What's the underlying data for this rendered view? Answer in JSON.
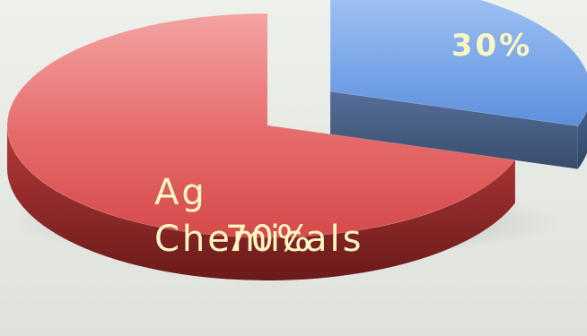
{
  "chart_data": {
    "type": "pie",
    "style": "3d-exploded",
    "slices": [
      {
        "label": "",
        "value": 30,
        "value_label": "30%",
        "color": "#6f9ee3"
      },
      {
        "label": "Ag\nChemicals",
        "value": 70,
        "value_label": "70%",
        "color": "#df5353"
      }
    ],
    "label_color": "#fbf7c2",
    "legend": "none"
  }
}
